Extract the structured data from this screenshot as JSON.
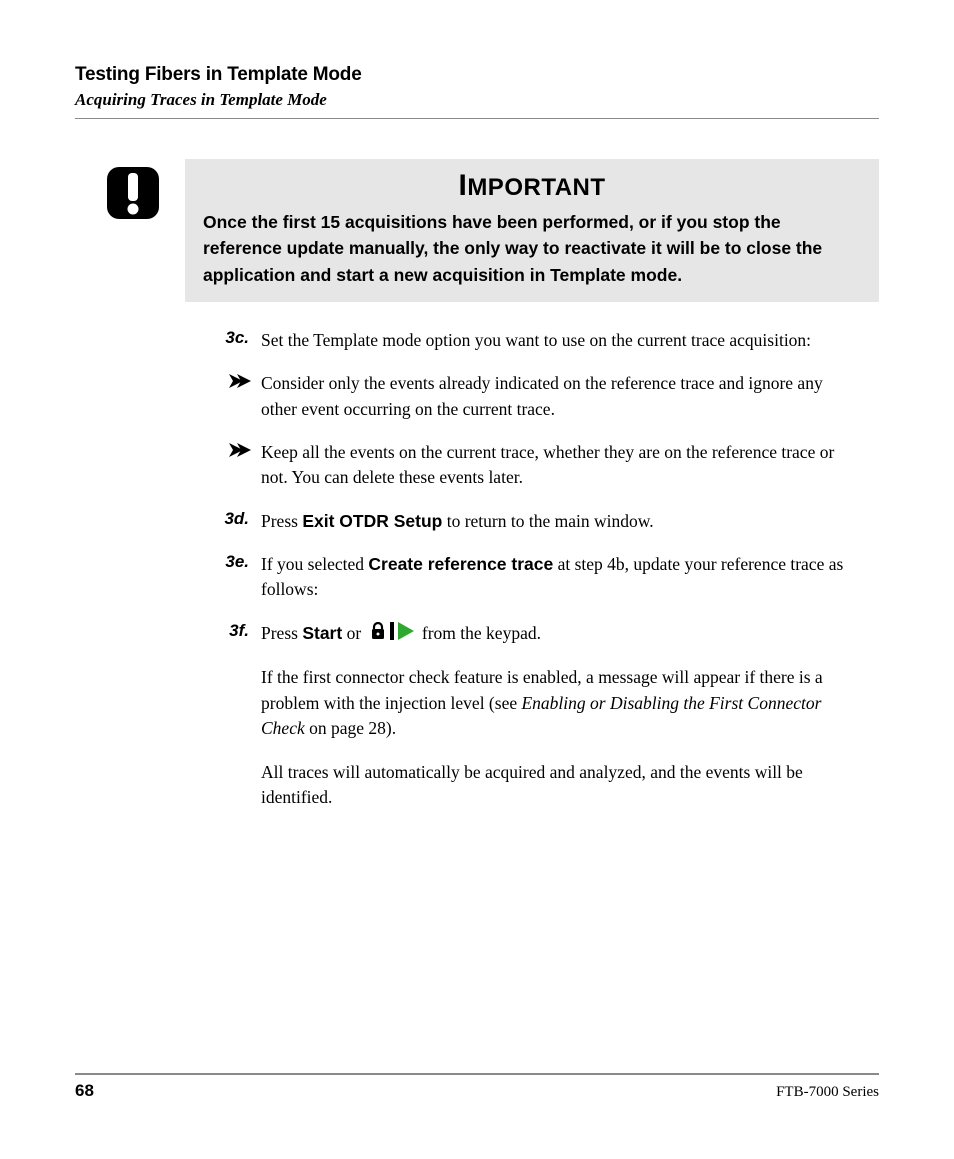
{
  "header": {
    "chapter_title": "Testing Fibers in Template Mode",
    "section_subtitle": "Acquiring Traces in Template Mode"
  },
  "callout": {
    "icon_name": "exclamation-icon",
    "icon_color": "#000000",
    "background": "#e6e6e6",
    "heading_first": "I",
    "heading_rest": "MPORTANT",
    "body": "Once the first 15 acquisitions have been performed, or if you stop the reference update manually, the only way to reactivate it will be to close the application and start a new acquisition in Template mode."
  },
  "steps": [
    {
      "marker": "3c.",
      "type": "step",
      "runs": [
        {
          "text": "Set the Template mode option you want to use on the current trace acquisition:"
        }
      ]
    },
    {
      "type": "arrow",
      "runs": [
        {
          "text": "Consider only the events already indicated on the reference trace and ignore any other event occurring on the current trace."
        }
      ]
    },
    {
      "type": "arrow",
      "runs": [
        {
          "text": "Keep all the events on the current trace, whether they are on the reference trace or not. You can delete these events later."
        }
      ]
    },
    {
      "marker": "3d.",
      "type": "step",
      "runs": [
        {
          "text": "Press "
        },
        {
          "text": "Exit OTDR Setup",
          "bold_sans": true
        },
        {
          "text": " to return to the main window."
        }
      ]
    },
    {
      "marker": "3e.",
      "type": "step",
      "runs": [
        {
          "text": "If you selected "
        },
        {
          "text": "Create reference trace",
          "bold_sans": true
        },
        {
          "text": " at step 4b, update your reference trace as follows:"
        }
      ]
    },
    {
      "marker": "3f.",
      "type": "step",
      "runs": [
        {
          "text": "Press "
        },
        {
          "text": "Start",
          "bold_sans": true
        },
        {
          "text": " or "
        },
        {
          "inline_icons": true
        },
        {
          "text": " from the keypad."
        }
      ]
    },
    {
      "type": "para",
      "runs": [
        {
          "text": "If the first connector check feature is enabled, a message will appear if there is a problem with the injection level (see "
        },
        {
          "text": "Enabling or Disabling the First Connector Check",
          "italic": true
        },
        {
          "text": " on page 28)."
        }
      ]
    },
    {
      "type": "para",
      "runs": [
        {
          "text": "All traces will automatically be acquired and analyzed, and the events will be identified."
        }
      ]
    }
  ],
  "inline_icons": {
    "lock_color": "#000000",
    "bar_color": "#000000",
    "play_color": "#2ea82e"
  },
  "arrow_bullet_color": "#000000",
  "footer": {
    "page_number": "68",
    "product": "FTB-7000 Series"
  }
}
